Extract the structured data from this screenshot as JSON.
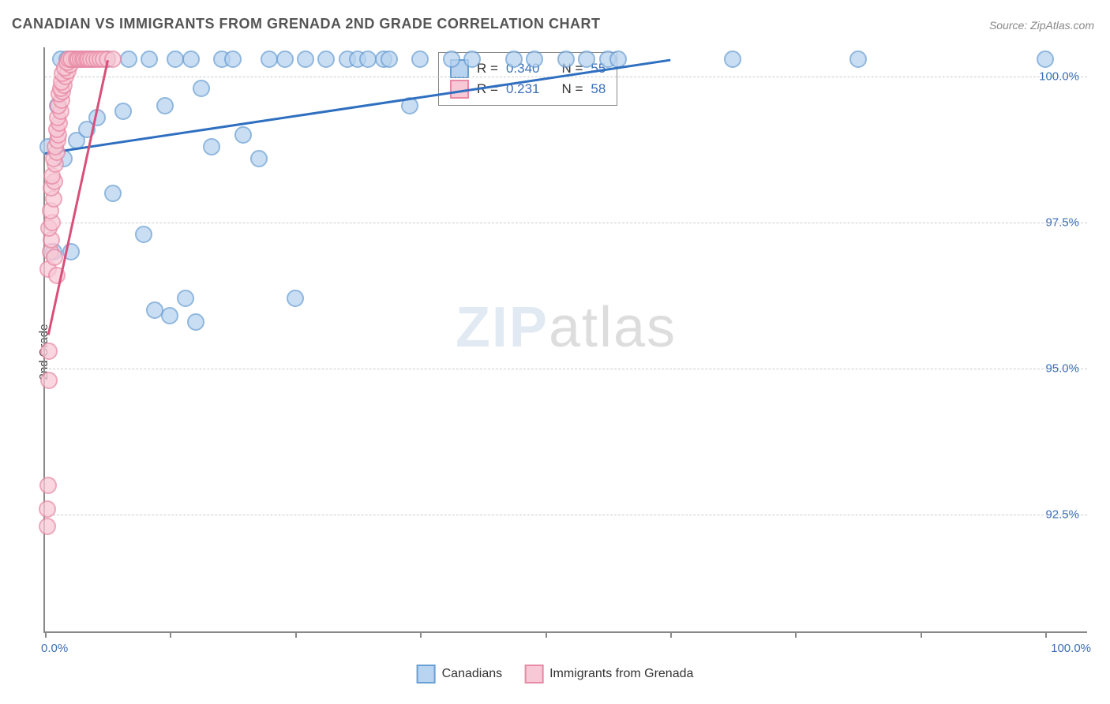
{
  "title": "CANADIAN VS IMMIGRANTS FROM GRENADA 2ND GRADE CORRELATION CHART",
  "source": "Source: ZipAtlas.com",
  "watermark_zip": "ZIP",
  "watermark_atlas": "atlas",
  "chart": {
    "type": "scatter",
    "x_range": [
      0,
      100
    ],
    "y_range": [
      90.5,
      100.5
    ],
    "y_axis_label": "2nd Grade",
    "x_axis_labels": {
      "min": "0.0%",
      "max": "100.0%"
    },
    "y_ticks": [
      {
        "v": 100.0,
        "label": "100.0%"
      },
      {
        "v": 97.5,
        "label": "97.5%"
      },
      {
        "v": 95.0,
        "label": "95.0%"
      },
      {
        "v": 92.5,
        "label": "92.5%"
      }
    ],
    "x_tick_positions": [
      0,
      12,
      24,
      36,
      48,
      60,
      72,
      84,
      96
    ],
    "background_color": "#ffffff",
    "grid_color": "#cccccc",
    "axis_color": "#888888",
    "point_radius": 9,
    "point_opacity": 0.75,
    "series": [
      {
        "id": "canadians",
        "name": "Canadians",
        "fill": "#b9d4f0",
        "stroke": "#6a9fd4",
        "line_color": "#2f6fc0",
        "R": "0.340",
        "N": "55",
        "trend": {
          "x1": 0,
          "y1": 98.7,
          "x2": 60,
          "y2": 100.3
        },
        "points": [
          [
            0.3,
            98.8
          ],
          [
            0.8,
            97.0
          ],
          [
            1.2,
            99.5
          ],
          [
            1.5,
            100.3
          ],
          [
            1.8,
            98.6
          ],
          [
            2.1,
            100.3
          ],
          [
            2.5,
            97.0
          ],
          [
            2.8,
            100.3
          ],
          [
            3.0,
            98.9
          ],
          [
            3.5,
            100.3
          ],
          [
            4.0,
            99.1
          ],
          [
            4.5,
            100.3
          ],
          [
            5.0,
            99.3
          ],
          [
            6.0,
            100.3
          ],
          [
            6.5,
            98.0
          ],
          [
            7.5,
            99.4
          ],
          [
            8.0,
            100.3
          ],
          [
            9.5,
            97.3
          ],
          [
            10.0,
            100.3
          ],
          [
            10.5,
            96.0
          ],
          [
            11.5,
            99.5
          ],
          [
            12.0,
            95.9
          ],
          [
            12.5,
            100.3
          ],
          [
            13.5,
            96.2
          ],
          [
            14.0,
            100.3
          ],
          [
            14.5,
            95.8
          ],
          [
            15.0,
            99.8
          ],
          [
            16.0,
            98.8
          ],
          [
            17.0,
            100.3
          ],
          [
            18.0,
            100.3
          ],
          [
            19.0,
            99.0
          ],
          [
            20.5,
            98.6
          ],
          [
            21.5,
            100.3
          ],
          [
            23.0,
            100.3
          ],
          [
            24.0,
            96.2
          ],
          [
            25.0,
            100.3
          ],
          [
            27.0,
            100.3
          ],
          [
            29.0,
            100.3
          ],
          [
            30.0,
            100.3
          ],
          [
            31.0,
            100.3
          ],
          [
            32.5,
            100.3
          ],
          [
            33.0,
            100.3
          ],
          [
            35.0,
            99.5
          ],
          [
            36.0,
            100.3
          ],
          [
            39.0,
            100.3
          ],
          [
            41.0,
            100.3
          ],
          [
            45.0,
            100.3
          ],
          [
            47.0,
            100.3
          ],
          [
            50.0,
            100.3
          ],
          [
            52.0,
            100.3
          ],
          [
            54.0,
            100.3
          ],
          [
            55.0,
            100.3
          ],
          [
            66.0,
            100.3
          ],
          [
            78.0,
            100.3
          ],
          [
            96.0,
            100.3
          ]
        ]
      },
      {
        "id": "grenada",
        "name": "Immigrants from Grenada",
        "fill": "#f7c9d6",
        "stroke": "#e88aa5",
        "line_color": "#d94f7a",
        "R": "0.231",
        "N": "58",
        "trend": {
          "x1": 0.3,
          "y1": 95.6,
          "x2": 6.0,
          "y2": 100.3
        },
        "points": [
          [
            0.2,
            92.3
          ],
          [
            0.25,
            92.6
          ],
          [
            0.3,
            93.0
          ],
          [
            0.35,
            94.8
          ],
          [
            0.4,
            95.3
          ],
          [
            0.3,
            96.7
          ],
          [
            0.5,
            97.0
          ],
          [
            0.6,
            97.2
          ],
          [
            0.4,
            97.4
          ],
          [
            0.7,
            97.5
          ],
          [
            0.55,
            97.7
          ],
          [
            0.8,
            97.9
          ],
          [
            0.6,
            98.1
          ],
          [
            0.9,
            98.2
          ],
          [
            0.7,
            98.3
          ],
          [
            1.0,
            98.5
          ],
          [
            0.8,
            98.6
          ],
          [
            1.1,
            98.7
          ],
          [
            1.0,
            98.8
          ],
          [
            1.2,
            98.9
          ],
          [
            1.3,
            99.0
          ],
          [
            1.1,
            99.1
          ],
          [
            1.4,
            99.2
          ],
          [
            1.2,
            99.3
          ],
          [
            1.5,
            99.4
          ],
          [
            1.3,
            99.5
          ],
          [
            1.6,
            99.6
          ],
          [
            1.4,
            99.7
          ],
          [
            1.7,
            99.75
          ],
          [
            1.5,
            99.8
          ],
          [
            1.8,
            99.85
          ],
          [
            1.6,
            99.9
          ],
          [
            2.0,
            100.0
          ],
          [
            1.7,
            100.05
          ],
          [
            2.2,
            100.1
          ],
          [
            1.9,
            100.15
          ],
          [
            2.4,
            100.2
          ],
          [
            2.1,
            100.25
          ],
          [
            2.6,
            100.3
          ],
          [
            2.3,
            100.3
          ],
          [
            2.8,
            100.3
          ],
          [
            2.5,
            100.3
          ],
          [
            3.0,
            100.3
          ],
          [
            3.2,
            100.3
          ],
          [
            3.4,
            100.3
          ],
          [
            3.6,
            100.3
          ],
          [
            3.8,
            100.3
          ],
          [
            4.0,
            100.3
          ],
          [
            4.2,
            100.3
          ],
          [
            4.4,
            100.3
          ],
          [
            4.7,
            100.3
          ],
          [
            5.0,
            100.3
          ],
          [
            5.3,
            100.3
          ],
          [
            5.6,
            100.3
          ],
          [
            6.0,
            100.3
          ],
          [
            6.5,
            100.3
          ],
          [
            0.9,
            96.9
          ],
          [
            1.1,
            96.6
          ]
        ]
      }
    ]
  },
  "statbox": {
    "r_prefix": "R = ",
    "n_prefix": "N = "
  },
  "legend": {
    "label1": "Canadians",
    "label2": "Immigrants from Grenada"
  }
}
